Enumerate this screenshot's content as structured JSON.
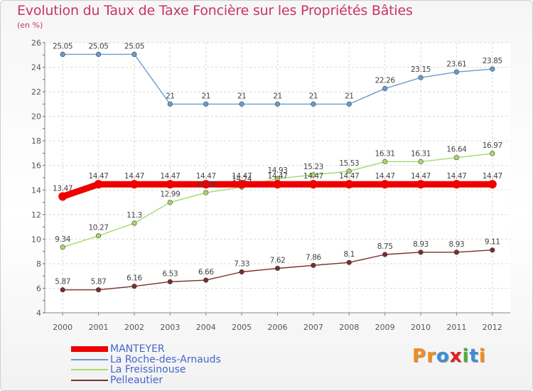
{
  "header": {
    "title": "Evolution du Taux de Taxe Foncière sur les Propriétés Bâties",
    "subtitle": "(en %)"
  },
  "logo": {
    "text": "Proxiti",
    "letters": [
      {
        "ch": "P",
        "color": "#f28c1e"
      },
      {
        "ch": "r",
        "color": "#f28c1e"
      },
      {
        "ch": "o",
        "color": "#3b8ed8"
      },
      {
        "ch": "x",
        "color": "#e02020"
      },
      {
        "ch": "i",
        "color": "#4cae3c"
      },
      {
        "ch": "t",
        "color": "#3b8ed8"
      },
      {
        "ch": "i",
        "color": "#f28c1e"
      }
    ]
  },
  "chart_data": {
    "type": "line",
    "title": "Evolution du Taux de Taxe Foncière sur les Propriétés Bâties",
    "ylabel": "(en %)",
    "xlabel": "",
    "x": [
      "2000",
      "2001",
      "2002",
      "2003",
      "2004",
      "2005",
      "2006",
      "2007",
      "2008",
      "2009",
      "2010",
      "2011",
      "2012"
    ],
    "ylim": [
      4,
      26
    ],
    "yticks": [
      4,
      6,
      8,
      10,
      12,
      14,
      16,
      18,
      20,
      22,
      24,
      26
    ],
    "grid": true,
    "legend_position": "bottom-left",
    "series": [
      {
        "name": "MANTEYER",
        "color": "#ee0000",
        "values": [
          13.47,
          14.47,
          14.47,
          14.47,
          14.47,
          14.47,
          14.47,
          14.47,
          14.47,
          14.47,
          14.47,
          14.47,
          14.47
        ]
      },
      {
        "name": "La Roche-des-Arnauds",
        "color": "#6a9bd1",
        "values": [
          25.05,
          25.05,
          25.05,
          21,
          21,
          21,
          21,
          21,
          21,
          22.26,
          23.15,
          23.61,
          23.85
        ]
      },
      {
        "name": "La Freissinouse",
        "color": "#a6d96a",
        "values": [
          9.34,
          10.27,
          11.3,
          12.99,
          13.78,
          14.24,
          14.93,
          15.23,
          15.53,
          16.31,
          16.31,
          16.64,
          16.97
        ]
      },
      {
        "name": "Pelleautier",
        "color": "#7a2d2d",
        "values": [
          5.87,
          5.87,
          6.16,
          6.53,
          6.66,
          7.33,
          7.62,
          7.86,
          8.1,
          8.75,
          8.93,
          8.93,
          9.11
        ]
      }
    ]
  }
}
